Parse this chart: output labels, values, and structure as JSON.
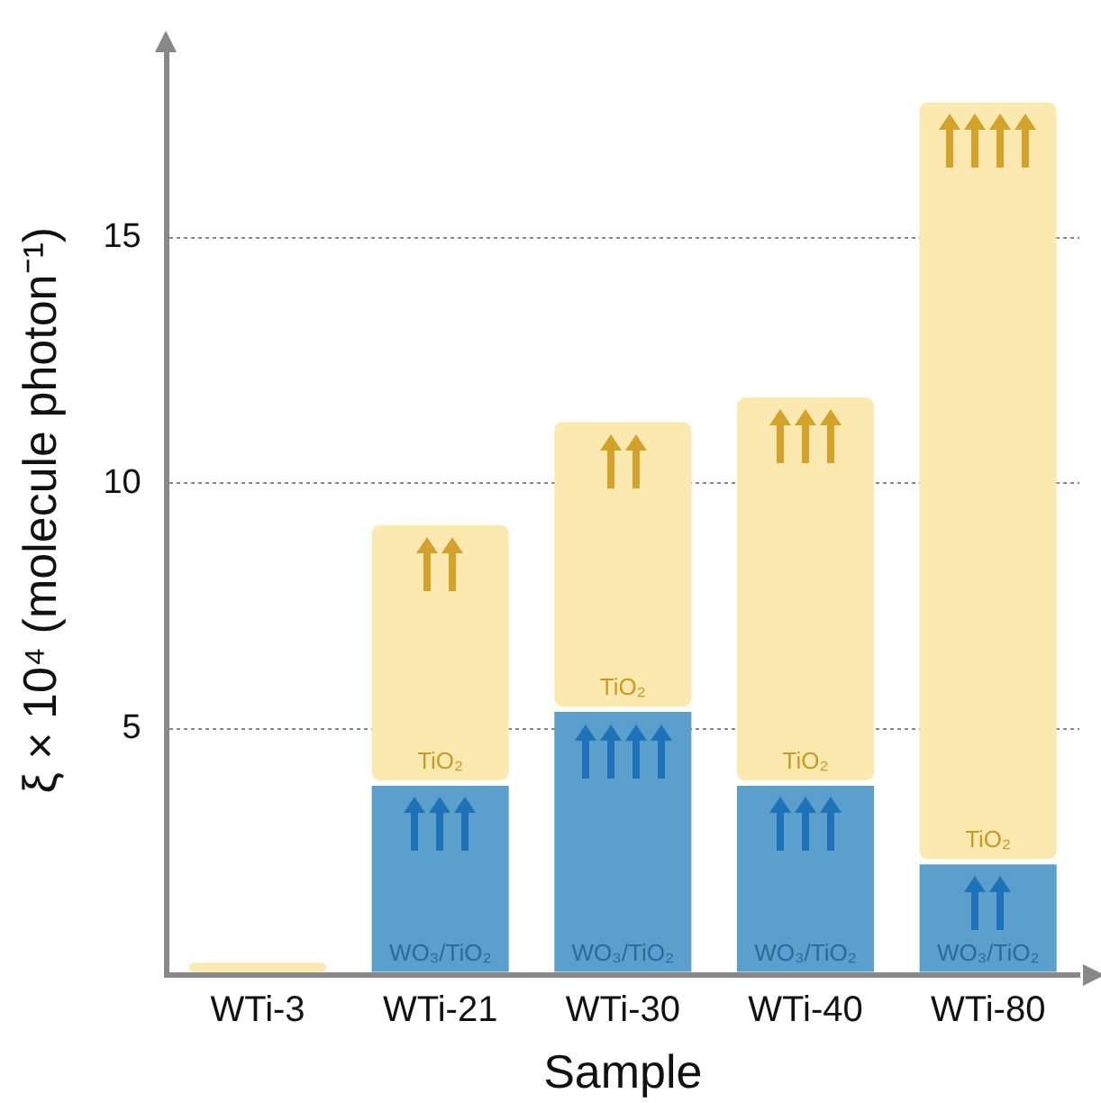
{
  "chart_data": {
    "type": "bar",
    "stacked": true,
    "xlabel": "Sample",
    "ylabel": "ξ × 10⁴ (molecule photon⁻¹)",
    "categories": [
      "WTi-3",
      "WTi-21",
      "WTi-30",
      "WTi-40",
      "WTi-80"
    ],
    "series": [
      {
        "name": "WO₃/TiO₂",
        "color": "#5b9fcc",
        "values": [
          null,
          3.9,
          5.4,
          3.9,
          2.3
        ]
      },
      {
        "name": "TiO₂",
        "color": "#fce9b0",
        "values": [
          0.3,
          5.3,
          5.9,
          7.9,
          15.5
        ]
      }
    ],
    "ylim": [
      0,
      18.9
    ],
    "yticks": [
      5,
      10,
      15
    ],
    "grid": "y",
    "legend": false
  }
}
